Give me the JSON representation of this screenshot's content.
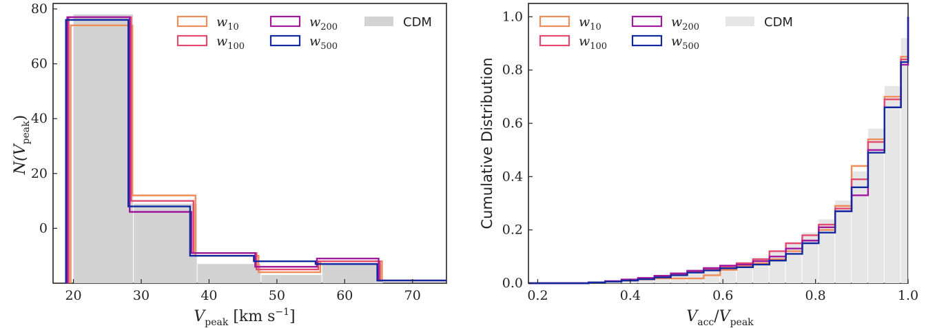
{
  "chart_data": [
    {
      "type": "histogram",
      "xlabel": "V_peak [km s^-1]",
      "ylabel": "N(V_peak)",
      "xlim": [
        17,
        75
      ],
      "ylim": [
        -20,
        82
      ],
      "xticks": [
        "20",
        "30",
        "40",
        "50",
        "60",
        "70"
      ],
      "yticks": [
        "0",
        "20",
        "40",
        "60",
        "80"
      ],
      "legend_position": "top",
      "cdm": {
        "name": "CDM",
        "color": "#d3d3d3",
        "bins": [
          [
            20.0,
            28.9,
            78
          ],
          [
            28.9,
            38.3,
            9
          ],
          [
            38.3,
            47.7,
            -13
          ],
          [
            47.7,
            56.7,
            -17
          ],
          [
            56.7,
            65.7,
            -13
          ],
          [
            65.7,
            75.0,
            -20
          ]
        ]
      },
      "series": [
        {
          "name": "w_10",
          "name_base": "w",
          "name_sub": "10",
          "color": "#f08c5a",
          "edges": [
            19.6,
            28.7,
            38.0,
            47.3,
            56.4,
            65.5,
            75.0
          ],
          "counts": [
            74,
            12,
            -10,
            -16,
            -12,
            -19
          ]
        },
        {
          "name": "w_100",
          "name_base": "w",
          "name_sub": "100",
          "color": "#e24a6e",
          "edges": [
            19.3,
            28.5,
            37.7,
            47.0,
            56.1,
            65.2,
            75.0
          ],
          "counts": [
            77,
            10,
            -9,
            -15,
            -12,
            -19
          ]
        },
        {
          "name": "w_200",
          "name_base": "w",
          "name_sub": "200",
          "color": "#a0189c",
          "edges": [
            19.1,
            28.3,
            37.4,
            46.8,
            55.9,
            65.0,
            75.0
          ],
          "counts": [
            77,
            6,
            -9,
            -14,
            -11,
            -19
          ]
        },
        {
          "name": "w_500",
          "name_base": "w",
          "name_sub": "500",
          "color": "#1028a0",
          "edges": [
            18.9,
            28.1,
            37.2,
            46.6,
            55.7,
            64.8,
            75.0
          ],
          "counts": [
            76,
            8,
            -10,
            -12,
            -13,
            -19
          ]
        }
      ]
    },
    {
      "type": "histogram",
      "xlabel": "V_acc/V_peak",
      "ylabel": "Cumulative Distribution",
      "xlim": [
        0.18,
        1.0
      ],
      "ylim": [
        0.0,
        1.05
      ],
      "xticks": [
        "0.2",
        "0.4",
        "0.6",
        "0.8",
        "1.0"
      ],
      "yticks": [
        "0.0",
        "0.2",
        "0.4",
        "0.6",
        "0.8",
        "1.0"
      ],
      "legend_position": "top-left",
      "bin_edges": [
        0.31,
        0.3455,
        0.381,
        0.4165,
        0.452,
        0.4875,
        0.523,
        0.5585,
        0.594,
        0.6295,
        0.665,
        0.7005,
        0.736,
        0.7715,
        0.807,
        0.8425,
        0.878,
        0.9135,
        0.949,
        0.9845,
        1.0
      ],
      "cdm": {
        "name": "CDM",
        "color": "#e6e6e6",
        "values": [
          0.003,
          0.008,
          0.013,
          0.018,
          0.024,
          0.031,
          0.04,
          0.05,
          0.063,
          0.078,
          0.097,
          0.12,
          0.15,
          0.19,
          0.24,
          0.31,
          0.42,
          0.58,
          0.74,
          0.92,
          1.0
        ]
      },
      "series": [
        {
          "name": "w_10",
          "name_base": "w",
          "name_sub": "10",
          "color": "#f08c5a",
          "values": [
            0.003,
            0.006,
            0.01,
            0.014,
            0.018,
            0.018,
            0.018,
            0.03,
            0.05,
            0.065,
            0.075,
            0.09,
            0.12,
            0.16,
            0.2,
            0.29,
            0.44,
            0.54,
            0.7,
            0.85,
            1.0
          ]
        },
        {
          "name": "w_100",
          "name_base": "w",
          "name_sub": "100",
          "color": "#e24a6e",
          "values": [
            0.003,
            0.007,
            0.012,
            0.018,
            0.025,
            0.033,
            0.042,
            0.052,
            0.063,
            0.075,
            0.09,
            0.12,
            0.15,
            0.18,
            0.22,
            0.28,
            0.39,
            0.53,
            0.69,
            0.84,
            0.94
          ]
        },
        {
          "name": "w_200",
          "name_base": "w",
          "name_sub": "200",
          "color": "#a0189c",
          "values": [
            0.003,
            0.008,
            0.014,
            0.02,
            0.028,
            0.037,
            0.047,
            0.057,
            0.066,
            0.07,
            0.083,
            0.1,
            0.13,
            0.16,
            0.21,
            0.27,
            0.33,
            0.5,
            0.66,
            0.82,
            0.96
          ]
        },
        {
          "name": "w_500",
          "name_base": "w",
          "name_sub": "500",
          "color": "#1028a0",
          "values": [
            0.003,
            0.006,
            0.01,
            0.015,
            0.022,
            0.03,
            0.04,
            0.048,
            0.056,
            0.06,
            0.07,
            0.085,
            0.11,
            0.15,
            0.19,
            0.27,
            0.36,
            0.49,
            0.66,
            0.83,
            0.96
          ]
        }
      ]
    }
  ],
  "labels": {
    "left_y_base": "N(V",
    "left_y_sub": "peak",
    "left_y_close": ")",
    "left_x_base": "V",
    "left_x_sub": "peak",
    "left_x_unit": " [km s",
    "left_x_sup": "−1",
    "left_x_close": "]",
    "right_y": "Cumulative Distribution",
    "right_x_v1": "V",
    "right_x_sub1": "acc",
    "right_x_slash": "/",
    "right_x_v2": "V",
    "right_x_sub2": "peak",
    "cdm": "CDM"
  }
}
